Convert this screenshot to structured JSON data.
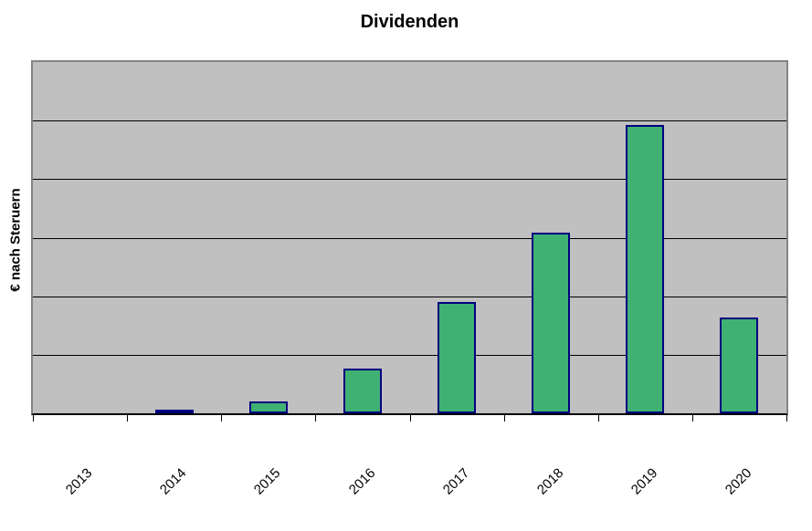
{
  "chart": {
    "title": "Dividenden",
    "y_axis_title": "€ nach Steruern"
  },
  "colors": {
    "background": "#FFFFFF",
    "plot_background": "#C0C0C0",
    "plot_border": "#848484",
    "gridline": "#000000",
    "axis_line": "#000000",
    "bar_fill": "#3FB273",
    "bar_border": "#000080",
    "text": "#000000"
  },
  "chart_data": {
    "type": "bar",
    "title": "Dividenden",
    "xlabel": "",
    "ylabel": "€ nach Steruern",
    "categories": [
      "2013",
      "2014",
      "2015",
      "2016",
      "2017",
      "2018",
      "2019",
      "2020"
    ],
    "values": [
      0,
      0.06,
      0.2,
      0.76,
      1.9,
      3.08,
      4.92,
      1.63
    ],
    "ylim": [
      0,
      6
    ],
    "value_units": "relative gridline units (no numeric y-axis tick labels are shown in the chart)",
    "y_tick_labels_visible": false,
    "horizontal_gridlines": 5,
    "gridlines_on": true,
    "legend": "none",
    "x_label_rotation_deg": 45
  }
}
